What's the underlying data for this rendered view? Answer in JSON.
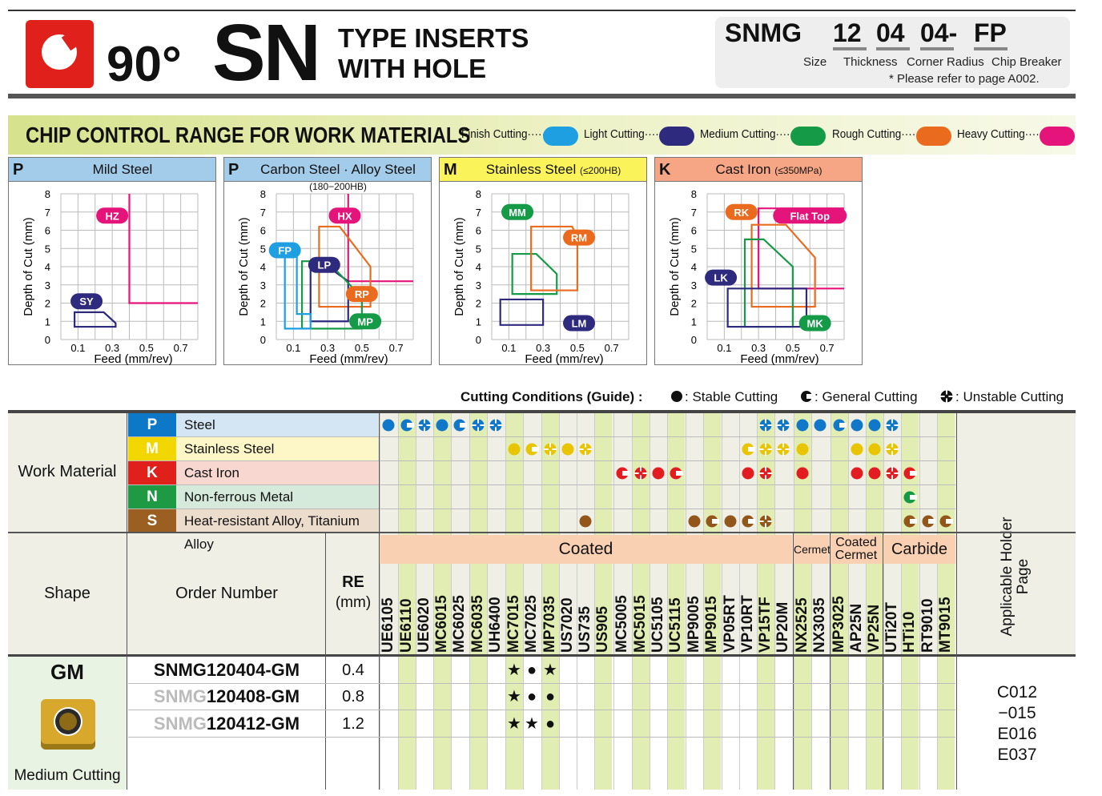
{
  "header": {
    "angle": "90°",
    "series": "SN",
    "title_line1": "TYPE INSERTS",
    "title_line2": "WITH HOLE",
    "code_parts": [
      "SNMG",
      "12",
      "04",
      "04-",
      "FP"
    ],
    "code_labels": [
      "Size",
      "Thickness",
      "Corner Radius",
      "Chip Breaker"
    ],
    "note": "* Please refer to page A002."
  },
  "chip_control": {
    "title": "CHIP CONTROL RANGE FOR WORK MATERIALS",
    "legend": [
      {
        "label": "Finish Cutting·····",
        "color": "#1d9fe2"
      },
      {
        "label": "Light Cutting·····",
        "color": "#2e2a7e"
      },
      {
        "label": "Medium Cutting·····",
        "color": "#159b48"
      },
      {
        "label": "Rough Cutting·····",
        "color": "#ea6b1d"
      },
      {
        "label": "Heavy Cutting·····",
        "color": "#e4147b"
      }
    ]
  },
  "chart_data": [
    {
      "type": "area",
      "letter": "P",
      "title": "Mild Steel",
      "sub": "",
      "header_color": "#a3cbea",
      "xlabel": "Feed (mm/rev)",
      "ylabel": "Depth of Cut (mm)",
      "xticks": [
        "0.1",
        "0.3",
        "0.5",
        "0.7"
      ],
      "yticks": [
        "0",
        "1",
        "2",
        "3",
        "4",
        "5",
        "6",
        "7",
        "8"
      ],
      "xlim": [
        0,
        0.8
      ],
      "ylim": [
        0,
        8
      ],
      "regions": [
        {
          "name": "HZ",
          "color": "#e4147b",
          "open": true,
          "points": [
            [
              0.4,
              8
            ],
            [
              0.4,
              2
            ],
            [
              0.8,
              2
            ]
          ],
          "label_at": [
            0.3,
            6.8
          ]
        },
        {
          "name": "SY",
          "color": "#2e2a7e",
          "points": [
            [
              0.08,
              0.7
            ],
            [
              0.08,
              1.5
            ],
            [
              0.25,
              1.5
            ],
            [
              0.32,
              0.9
            ],
            [
              0.32,
              0.7
            ]
          ],
          "label_at": [
            0.15,
            2.1
          ]
        }
      ]
    },
    {
      "type": "area",
      "letter": "P",
      "title": "Carbon Steel · Alloy Steel ",
      "sub": "(180−200HB)",
      "header_color": "#a3cbea",
      "xlabel": "Feed (mm/rev)",
      "ylabel": "Depth of Cut (mm)",
      "xticks": [
        "0.1",
        "0.3",
        "0.5",
        "0.7"
      ],
      "yticks": [
        "0",
        "1",
        "2",
        "3",
        "4",
        "5",
        "6",
        "7",
        "8"
      ],
      "xlim": [
        0,
        0.8
      ],
      "ylim": [
        0,
        8
      ],
      "regions": [
        {
          "name": "HX",
          "color": "#e4147b",
          "open": true,
          "points": [
            [
              0.42,
              8
            ],
            [
              0.42,
              3.2
            ],
            [
              0.8,
              3.2
            ]
          ],
          "label_at": [
            0.4,
            6.8
          ]
        },
        {
          "name": "RP",
          "color": "#ea6b1d",
          "points": [
            [
              0.25,
              6.2
            ],
            [
              0.37,
              6.2
            ],
            [
              0.55,
              4.0
            ],
            [
              0.55,
              1.8
            ],
            [
              0.25,
              1.8
            ]
          ],
          "label_at": [
            0.5,
            2.5
          ]
        },
        {
          "name": "LP",
          "color": "#2e2a7e",
          "points": [
            [
              0.2,
              1.0
            ],
            [
              0.2,
              4.0
            ],
            [
              0.3,
              4.0
            ],
            [
              0.42,
              3.2
            ],
            [
              0.42,
              1.0
            ]
          ],
          "label_at": [
            0.28,
            4.1
          ]
        },
        {
          "name": "MP",
          "color": "#159b48",
          "points": [
            [
              0.15,
              0.6
            ],
            [
              0.15,
              4.3
            ],
            [
              0.3,
              4.3
            ],
            [
              0.5,
              2.3
            ],
            [
              0.5,
              0.6
            ]
          ],
          "label_at": [
            0.52,
            1.0
          ]
        },
        {
          "name": "FP",
          "color": "#1d9fe2",
          "points": [
            [
              0.05,
              0.6
            ],
            [
              0.05,
              5.0
            ],
            [
              0.12,
              5.0
            ],
            [
              0.12,
              1.4
            ],
            [
              0.2,
              1.4
            ],
            [
              0.2,
              0.6
            ]
          ],
          "label_at": [
            0.05,
            4.9
          ]
        }
      ]
    },
    {
      "type": "area",
      "letter": "M",
      "title": "Stainless Steel ",
      "sub": "(≤200HB)",
      "header_color": "#fbf35a",
      "xlabel": "Feed (mm/rev)",
      "ylabel": "Depth of Cut (mm)",
      "xticks": [
        "0.1",
        "0.3",
        "0.5",
        "0.7"
      ],
      "yticks": [
        "0",
        "1",
        "2",
        "3",
        "4",
        "5",
        "6",
        "7",
        "8"
      ],
      "xlim": [
        0,
        0.8
      ],
      "ylim": [
        0,
        8
      ],
      "regions": [
        {
          "name": "MM",
          "color": "#159b48",
          "points": [
            [
              0.12,
              2.5
            ],
            [
              0.12,
              4.7
            ],
            [
              0.26,
              4.7
            ],
            [
              0.38,
              3.6
            ],
            [
              0.38,
              2.5
            ]
          ],
          "label_at": [
            0.15,
            7.0
          ]
        },
        {
          "name": "RM",
          "color": "#ea6b1d",
          "points": [
            [
              0.23,
              6.2
            ],
            [
              0.47,
              6.2
            ],
            [
              0.5,
              5.6
            ],
            [
              0.5,
              2.7
            ],
            [
              0.23,
              2.7
            ]
          ],
          "label_at": [
            0.51,
            5.6
          ]
        },
        {
          "name": "LM",
          "color": "#2e2a7e",
          "points": [
            [
              0.05,
              0.8
            ],
            [
              0.05,
              2.2
            ],
            [
              0.3,
              2.2
            ],
            [
              0.3,
              0.8
            ]
          ],
          "label_at": [
            0.51,
            0.9
          ]
        }
      ]
    },
    {
      "type": "area",
      "letter": "K",
      "title": "Cast Iron ",
      "sub": "(≤350MPa)",
      "header_color": "#f6a585",
      "xlabel": "Feed (mm/rev)",
      "ylabel": "Depth of Cut (mm)",
      "xticks": [
        "0.1",
        "0.3",
        "0.5",
        "0.7"
      ],
      "yticks": [
        "0",
        "1",
        "2",
        "3",
        "4",
        "5",
        "6",
        "7",
        "8"
      ],
      "xlim": [
        0,
        0.8
      ],
      "ylim": [
        0,
        8
      ],
      "regions": [
        {
          "name": "Flat Top",
          "color": "#e4147b",
          "open": true,
          "points": [
            [
              0.8,
              7.2
            ],
            [
              0.3,
              7.2
            ],
            [
              0.3,
              2.8
            ],
            [
              0.8,
              2.8
            ]
          ],
          "label_at": [
            0.6,
            6.8
          ]
        },
        {
          "name": "RK",
          "color": "#ea6b1d",
          "points": [
            [
              0.26,
              6.3
            ],
            [
              0.46,
              6.3
            ],
            [
              0.63,
              4.5
            ],
            [
              0.63,
              1.8
            ],
            [
              0.26,
              1.8
            ]
          ],
          "label_at": [
            0.2,
            7.0
          ]
        },
        {
          "name": "MK",
          "color": "#159b48",
          "points": [
            [
              0.22,
              0.7
            ],
            [
              0.22,
              5.5
            ],
            [
              0.33,
              5.5
            ],
            [
              0.5,
              4.0
            ],
            [
              0.5,
              0.7
            ]
          ],
          "label_at": [
            0.63,
            0.9
          ]
        },
        {
          "name": "LK",
          "color": "#2e2a7e",
          "points": [
            [
              0.12,
              0.7
            ],
            [
              0.12,
              2.8
            ],
            [
              0.58,
              2.8
            ],
            [
              0.58,
              0.7
            ]
          ],
          "label_at": [
            0.08,
            3.4
          ]
        }
      ]
    }
  ],
  "cond_legend": {
    "title": "Cutting Conditions (Guide) :",
    "stable": "Stable Cutting",
    "general": "General Cutting",
    "unstable": "Unstable Cutting"
  },
  "work_material": {
    "label": "Work Material",
    "rows": [
      {
        "letter": "P",
        "name": "Steel",
        "color": "#0d78c8",
        "bg": "#d4e5f3"
      },
      {
        "letter": "M",
        "name": "Stainless Steel",
        "color": "#f2d600",
        "bg": "#fdf7c7"
      },
      {
        "letter": "K",
        "name": "Cast Iron",
        "color": "#e0211b",
        "bg": "#f7d7cf"
      },
      {
        "letter": "N",
        "name": "Non-ferrous Metal",
        "color": "#1e9a45",
        "bg": "#d5eadb"
      },
      {
        "letter": "S",
        "name": "Heat-resistant Alloy, Titanium Alloy",
        "color": "#9b5f22",
        "bg": "#ecdccc"
      }
    ]
  },
  "symbol_colors": [
    "#1178c9",
    "#e8c500",
    "#e31c22",
    "#149a45",
    "#93561a"
  ],
  "grades": [
    "UE6105",
    "UE6110",
    "UE6020",
    "MC6015",
    "MC6025",
    "MC6035",
    "UH6400",
    "MC7015",
    "MC7025",
    "MP7035",
    "US7020",
    "US735",
    "US905",
    "MC5005",
    "MC5015",
    "UC5105",
    "UC5115",
    "MP9005",
    "MP9015",
    "VP05RT",
    "VP10RT",
    "VP15TF",
    "UP20M",
    "NX2525",
    "NX3035",
    "MP3025",
    "AP25N",
    "VP25N",
    "UTi20T",
    "HTi10",
    "RT9010",
    "MT9015"
  ],
  "grade_groups": [
    {
      "name": "Coated",
      "count": 23
    },
    {
      "name": "Cermet",
      "count": 2
    },
    {
      "name": "Coated Cermet",
      "count": 3
    },
    {
      "name": "Carbide",
      "count": 4
    }
  ],
  "matrix": [
    [
      "s",
      "g",
      "u",
      "s",
      "g",
      "u",
      "u",
      null,
      null,
      null,
      null,
      null,
      null,
      null,
      null,
      null,
      null,
      null,
      null,
      null,
      null,
      "u",
      "u",
      "s",
      "s",
      "g",
      "s",
      "s",
      "u",
      null,
      null,
      null
    ],
    [
      null,
      null,
      null,
      null,
      null,
      null,
      null,
      "s",
      "g",
      "u",
      "s",
      "u",
      null,
      null,
      null,
      null,
      null,
      null,
      null,
      null,
      "g",
      "u",
      "u",
      "s",
      null,
      null,
      "s",
      "s",
      "u",
      null,
      null,
      null
    ],
    [
      null,
      null,
      null,
      null,
      null,
      null,
      null,
      null,
      null,
      null,
      null,
      null,
      null,
      "g",
      "u",
      "s",
      "g",
      null,
      null,
      null,
      "s",
      "u",
      null,
      "s",
      null,
      null,
      "s",
      "s",
      "u",
      "g",
      null,
      null
    ],
    [
      null,
      null,
      null,
      null,
      null,
      null,
      null,
      null,
      null,
      null,
      null,
      null,
      null,
      null,
      null,
      null,
      null,
      null,
      null,
      null,
      null,
      null,
      null,
      null,
      null,
      null,
      null,
      null,
      null,
      "g",
      null,
      null
    ],
    [
      null,
      null,
      null,
      null,
      null,
      null,
      null,
      null,
      null,
      null,
      null,
      "s",
      null,
      null,
      null,
      null,
      null,
      "s",
      "g",
      "s",
      "g",
      "u",
      null,
      null,
      null,
      null,
      null,
      null,
      null,
      "g",
      "g",
      "g"
    ]
  ],
  "table_headers": {
    "shape": "Shape",
    "order": "Order Number",
    "re_title": "RE",
    "re_unit": "(mm)",
    "holder": "Applicable Holder Page"
  },
  "products": {
    "chipbreaker": "GM",
    "subtitle": "Medium Cutting",
    "rows": [
      {
        "prefix": "SNMG",
        "number": "120404-GM",
        "re": "0.4",
        "marks": [
          "★",
          "●",
          "★"
        ]
      },
      {
        "prefix": "SNMG",
        "number": "120408-GM",
        "re": "0.8",
        "marks": [
          "★",
          "●",
          "●"
        ]
      },
      {
        "prefix": "SNMG",
        "number": "120412-GM",
        "re": "1.2",
        "marks": [
          "★",
          "★",
          "●"
        ]
      }
    ],
    "holder_pages": [
      "C012",
      "−015",
      "E016",
      "E037"
    ]
  }
}
